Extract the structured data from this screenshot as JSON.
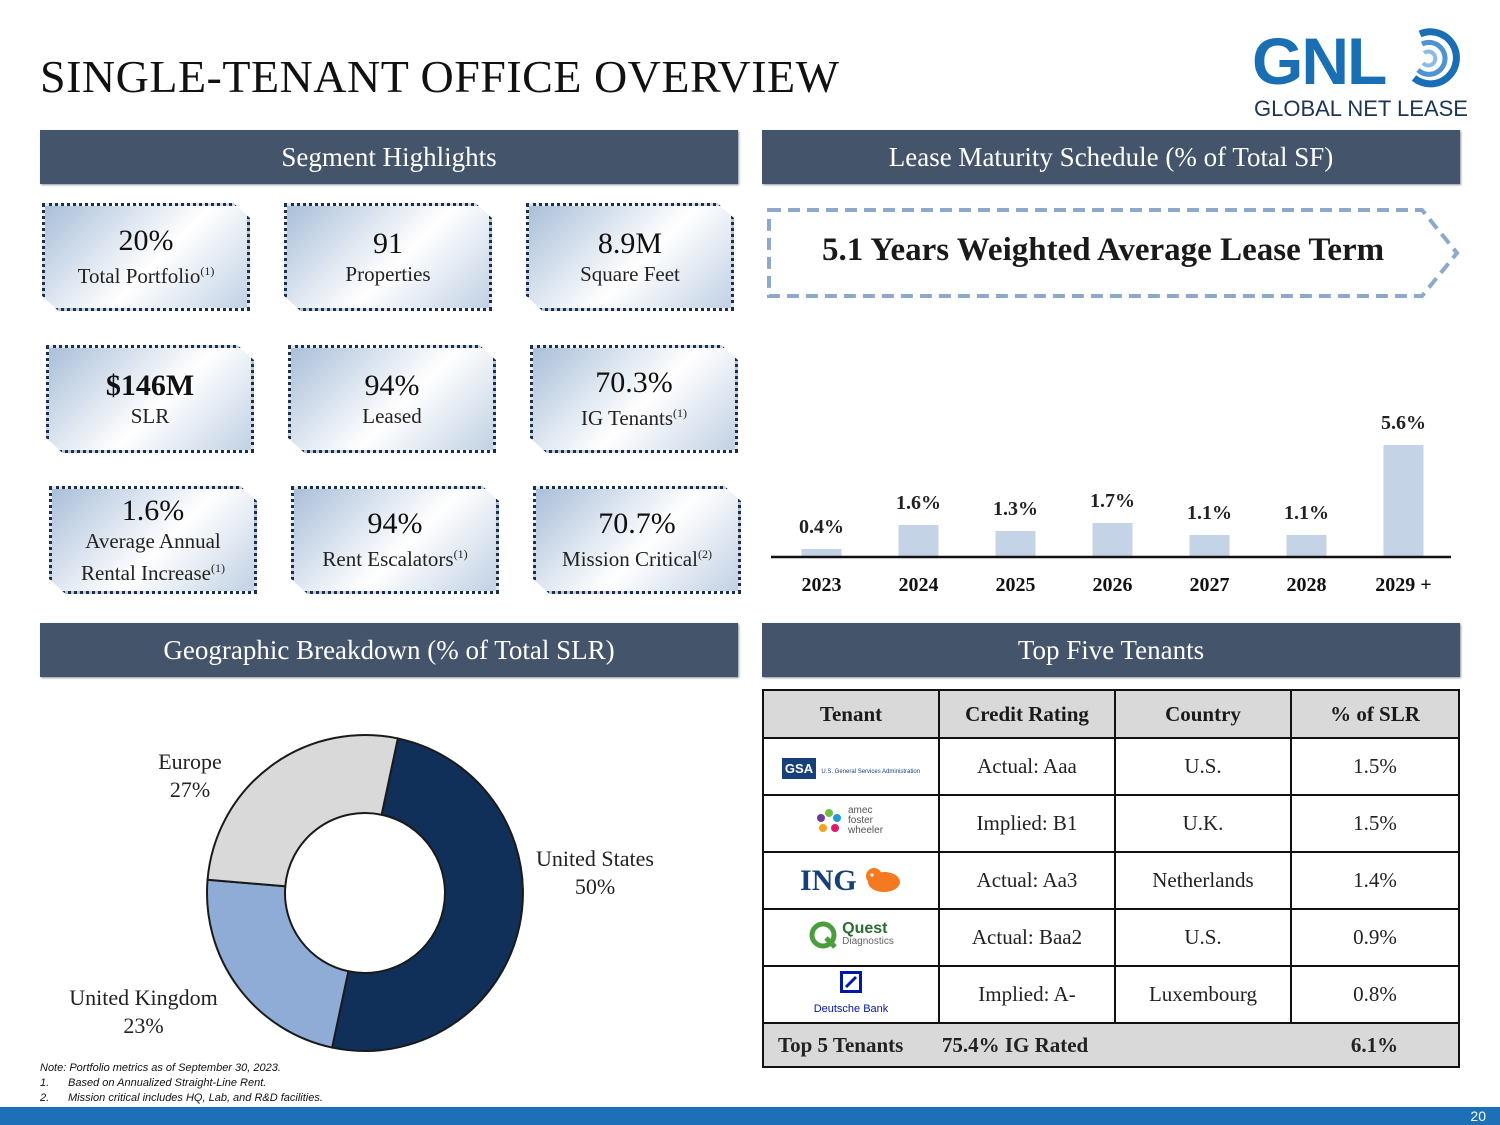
{
  "title": "SINGLE-TENANT OFFICE OVERVIEW",
  "logo": {
    "wordmark": "GNL",
    "subtitle": "GLOBAL NET LEASE"
  },
  "headers": {
    "segment": "Segment Highlights",
    "lease": "Lease Maturity Schedule (% of Total SF)",
    "geo": "Geographic Breakdown (% of Total SLR)",
    "tenants": "Top Five Tenants"
  },
  "highlights": [
    {
      "value": "20%",
      "label": "Total Portfolio",
      "note": "(1)"
    },
    {
      "value": "91",
      "label": "Properties",
      "note": ""
    },
    {
      "value": "8.9M",
      "label": "Square Feet",
      "note": ""
    },
    {
      "value": "$146M",
      "label": "SLR",
      "note": ""
    },
    {
      "value": "94%",
      "label": "Leased",
      "note": ""
    },
    {
      "value": "70.3%",
      "label": "IG Tenants",
      "note": "(1)"
    },
    {
      "value": "1.6%",
      "label": "Average Annual",
      "label2": "Rental Increase",
      "note": "(1)"
    },
    {
      "value": "94%",
      "label": "Rent Escalators",
      "note": "(1)"
    },
    {
      "value": "70.7%",
      "label": "Mission Critical",
      "note": "(2)"
    }
  ],
  "wale": "5.1 Years Weighted Average Lease Term",
  "chart_data": [
    {
      "type": "bar",
      "title": "Lease Maturity Schedule (% of Total SF)",
      "categories": [
        "2023",
        "2024",
        "2025",
        "2026",
        "2027",
        "2028",
        "2029 +"
      ],
      "values": [
        0.4,
        1.6,
        1.3,
        1.7,
        1.1,
        1.1,
        5.6
      ],
      "labels": [
        "0.4%",
        "1.6%",
        "1.3%",
        "1.7%",
        "1.1%",
        "1.1%",
        "5.6%"
      ],
      "ylim": [
        0,
        5.6
      ],
      "color": "#c5d3e6"
    },
    {
      "type": "pie",
      "title": "Geographic Breakdown (% of Total SLR)",
      "categories": [
        "United States",
        "United Kingdom",
        "Europe"
      ],
      "values": [
        50,
        23,
        27
      ],
      "labels": [
        "50%",
        "23%",
        "27%"
      ],
      "colors": [
        "#10305a",
        "#8eacd6",
        "#d9d9d9"
      ]
    }
  ],
  "table": {
    "columns": [
      "Tenant",
      "Credit Rating",
      "Country",
      "% of SLR"
    ],
    "rows": [
      {
        "logo": "GSA",
        "logo_sub": "U.S. General Services Administration",
        "rating": "Actual: Aaa",
        "country": "U.S.",
        "pct": "1.5%"
      },
      {
        "logo": "amec foster wheeler",
        "rating": "Implied: B1",
        "country": "U.K.",
        "pct": "1.5%"
      },
      {
        "logo": "ING",
        "rating": "Actual: Aa3",
        "country": "Netherlands",
        "pct": "1.4%"
      },
      {
        "logo": "Quest",
        "logo_sub": "Diagnostics",
        "rating": "Actual: Baa2",
        "country": "U.S.",
        "pct": "0.9%"
      },
      {
        "logo": "Deutsche Bank",
        "rating": "Implied: A-",
        "country": "Luxembourg",
        "pct": "0.8%"
      }
    ],
    "total": {
      "label": "Top 5 Tenants",
      "ig": "75.4% IG Rated",
      "pct": "6.1%"
    }
  },
  "notes": {
    "main": "Note: Portfolio metrics as of September 30, 2023.",
    "n1_num": "1.",
    "n1": "Based on Annualized Straight-Line Rent.",
    "n2_num": "2.",
    "n2": "Mission critical includes HQ, Lab, and R&D facilities."
  },
  "page_number": "20",
  "colors": {
    "header": "#44546a",
    "accent": "#1d6fb8",
    "bar": "#c5d3e6"
  }
}
